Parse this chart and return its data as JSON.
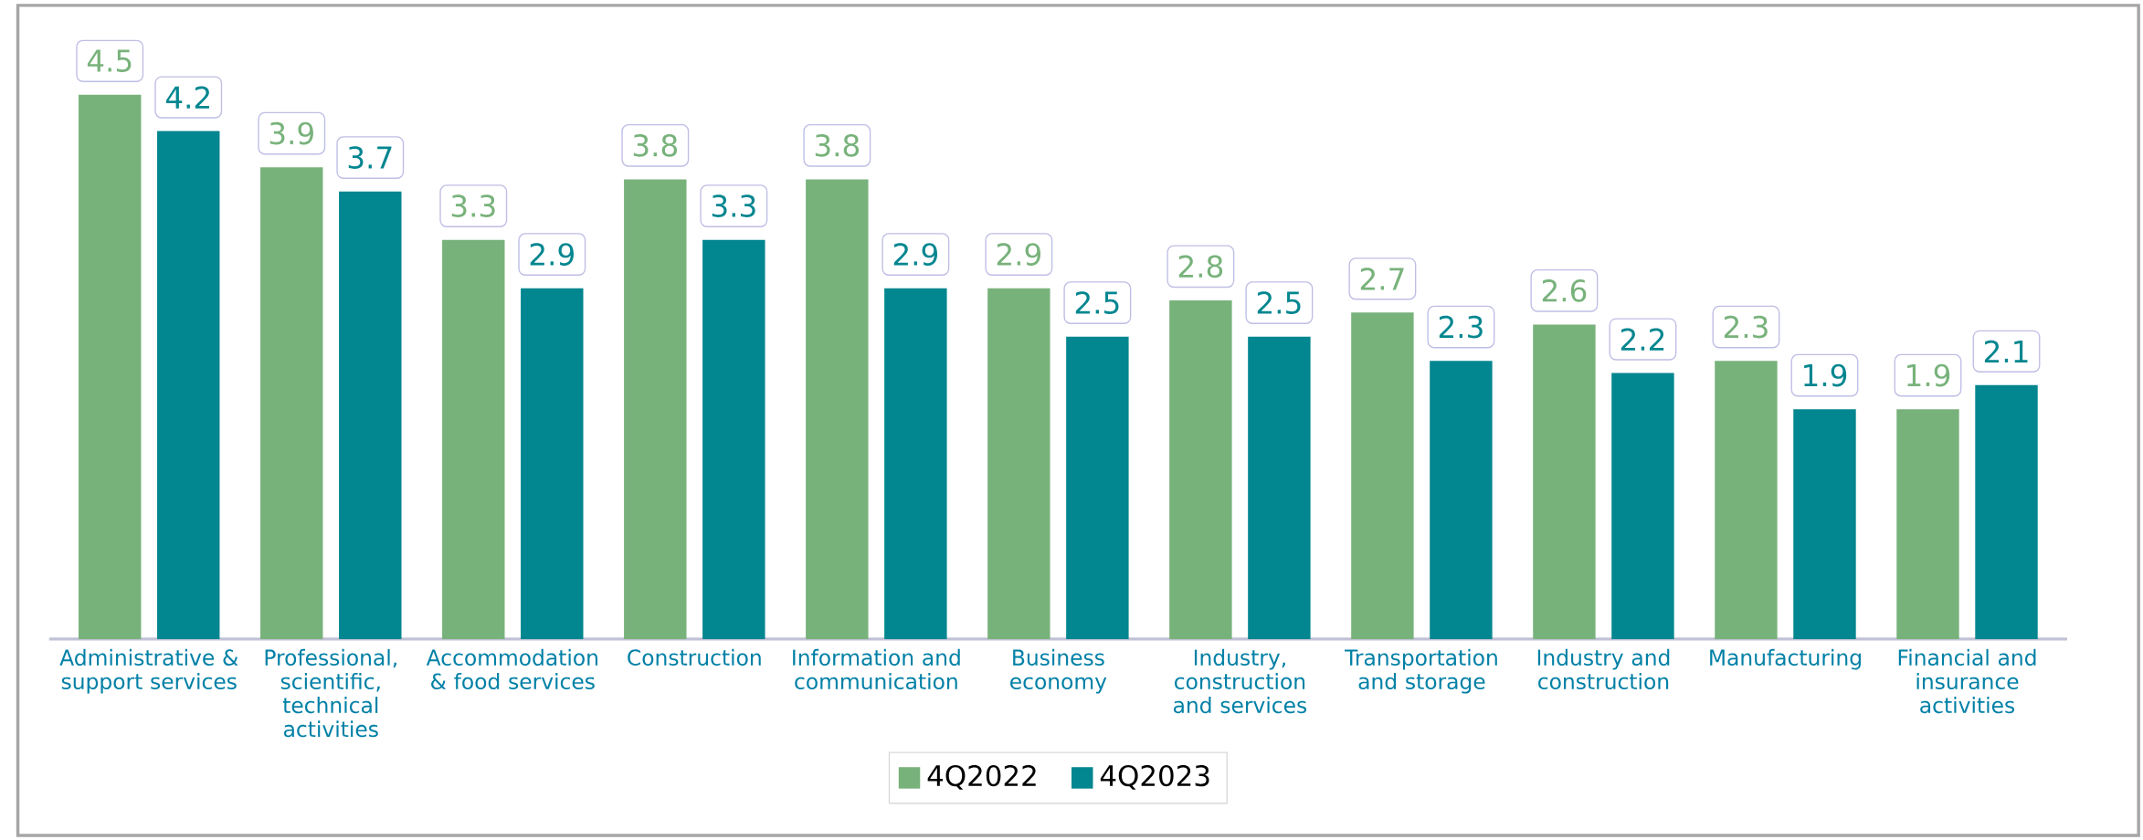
{
  "chart_data": {
    "type": "bar",
    "categories": [
      "Administrative & support services",
      "Professional, scientific, technical activities",
      "Accommodation & food services",
      "Construction",
      "Information and communication",
      "Business economy",
      "Industry, construction and services",
      "Transportation and storage",
      "Industry and construction",
      "Manufacturing",
      "Financial and insurance activities"
    ],
    "series": [
      {
        "name": "4Q2022",
        "color": "#78b27b",
        "values": [
          4.5,
          3.9,
          3.3,
          3.8,
          3.8,
          2.9,
          2.8,
          2.7,
          2.6,
          2.3,
          1.9
        ]
      },
      {
        "name": "4Q2023",
        "color": "#028690",
        "values": [
          4.2,
          3.7,
          2.9,
          3.3,
          2.9,
          2.5,
          2.5,
          2.3,
          2.2,
          1.9,
          2.1
        ]
      }
    ],
    "ylim": [
      0,
      4.5
    ],
    "data_labels": true,
    "legend": "bottom"
  }
}
